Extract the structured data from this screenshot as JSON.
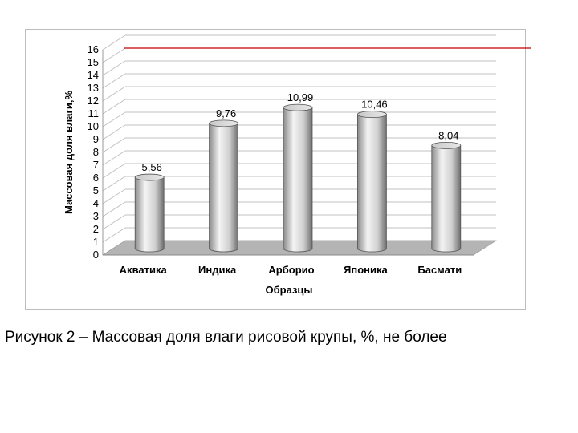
{
  "caption": "Рисунок 2 – Массовая доля влаги рисовой крупы, %, не более",
  "chart_data": {
    "type": "bar",
    "style": "3d-cylinder",
    "categories": [
      "Акватика",
      "Индика",
      "Арборио",
      "Японика",
      "Басмати"
    ],
    "values": [
      5.56,
      9.76,
      10.99,
      10.46,
      8.04
    ],
    "data_labels": [
      "5,56",
      "9,76",
      "10,99",
      "10,46",
      "8,04"
    ],
    "xlabel": "Образцы",
    "ylabel": "Массовая доля влаги,%",
    "ylim": [
      0,
      16
    ],
    "yticks": [
      0,
      1,
      2,
      3,
      4,
      5,
      6,
      7,
      8,
      9,
      10,
      11,
      12,
      13,
      14,
      15,
      16
    ],
    "grid": true,
    "reference_line": {
      "value": 15,
      "color": "#c00000"
    },
    "colors": {
      "bar": "#c8c8c8",
      "floor": "#b4b4b4",
      "grid": "#c0c0c0"
    }
  }
}
